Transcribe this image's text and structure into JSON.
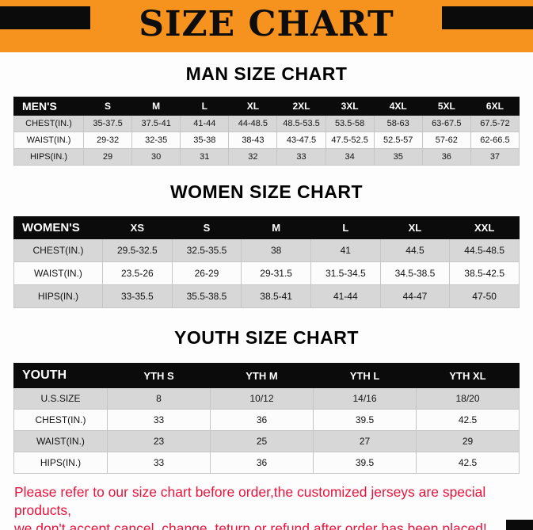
{
  "banner": {
    "title": "SIZE CHART"
  },
  "colors": {
    "banner_orange": "#F6921E",
    "header_black": "#0B0B0B",
    "row_gray": "#D7D7D7",
    "row_white": "#FCFCFC",
    "footer_red": "#E8143C"
  },
  "sections": [
    {
      "heading": "MAN SIZE CHART",
      "table": {
        "header": [
          "MEN'S",
          "S",
          "M",
          "L",
          "XL",
          "2XL",
          "3XL",
          "4XL",
          "5XL",
          "6XL"
        ],
        "rows": [
          {
            "label": "CHEST(IN.)",
            "values": [
              "35-37.5",
              "37.5-41",
              "41-44",
              "44-48.5",
              "48.5-53.5",
              "53.5-58",
              "58-63",
              "63-67.5",
              "67.5-72"
            ]
          },
          {
            "label": "WAIST(IN.)",
            "values": [
              "29-32",
              "32-35",
              "35-38",
              "38-43",
              "43-47.5",
              "47.5-52.5",
              "52.5-57",
              "57-62",
              "62-66.5"
            ]
          },
          {
            "label": "HIPS(IN.)",
            "values": [
              "29",
              "30",
              "31",
              "32",
              "33",
              "34",
              "35",
              "36",
              "37"
            ]
          }
        ]
      }
    },
    {
      "heading": "WOMEN SIZE CHART",
      "table": {
        "header": [
          "WOMEN'S",
          "XS",
          "S",
          "M",
          "L",
          "XL",
          "XXL"
        ],
        "rows": [
          {
            "label": "CHEST(IN.)",
            "values": [
              "29.5-32.5",
              "32.5-35.5",
              "38",
              "41",
              "44.5",
              "44.5-48.5"
            ]
          },
          {
            "label": "WAIST(IN.)",
            "values": [
              "23.5-26",
              "26-29",
              "29-31.5",
              "31.5-34.5",
              "34.5-38.5",
              "38.5-42.5"
            ]
          },
          {
            "label": "HIPS(IN.)",
            "values": [
              "33-35.5",
              "35.5-38.5",
              "38.5-41",
              "41-44",
              "44-47",
              "47-50"
            ]
          }
        ]
      }
    },
    {
      "heading": "YOUTH SIZE CHART",
      "table": {
        "header": [
          "YOUTH",
          "YTH S",
          "YTH M",
          "YTH L",
          "YTH XL"
        ],
        "rows": [
          {
            "label": "U.S.SIZE",
            "values": [
              "8",
              "10/12",
              "14/16",
              "18/20"
            ]
          },
          {
            "label": "CHEST(IN.)",
            "values": [
              "33",
              "36",
              "39.5",
              "42.5"
            ]
          },
          {
            "label": "WAIST(IN.)",
            "values": [
              "23",
              "25",
              "27",
              "29"
            ]
          },
          {
            "label": "HIPS(IN.)",
            "values": [
              "33",
              "36",
              "39.5",
              "42.5"
            ]
          }
        ]
      }
    }
  ],
  "footer": {
    "line1": "Please refer to our size chart before order,the customized jerseys are special products,",
    "line2": "we don't accept cancel, change, teturn or refund after order has been placed!"
  }
}
